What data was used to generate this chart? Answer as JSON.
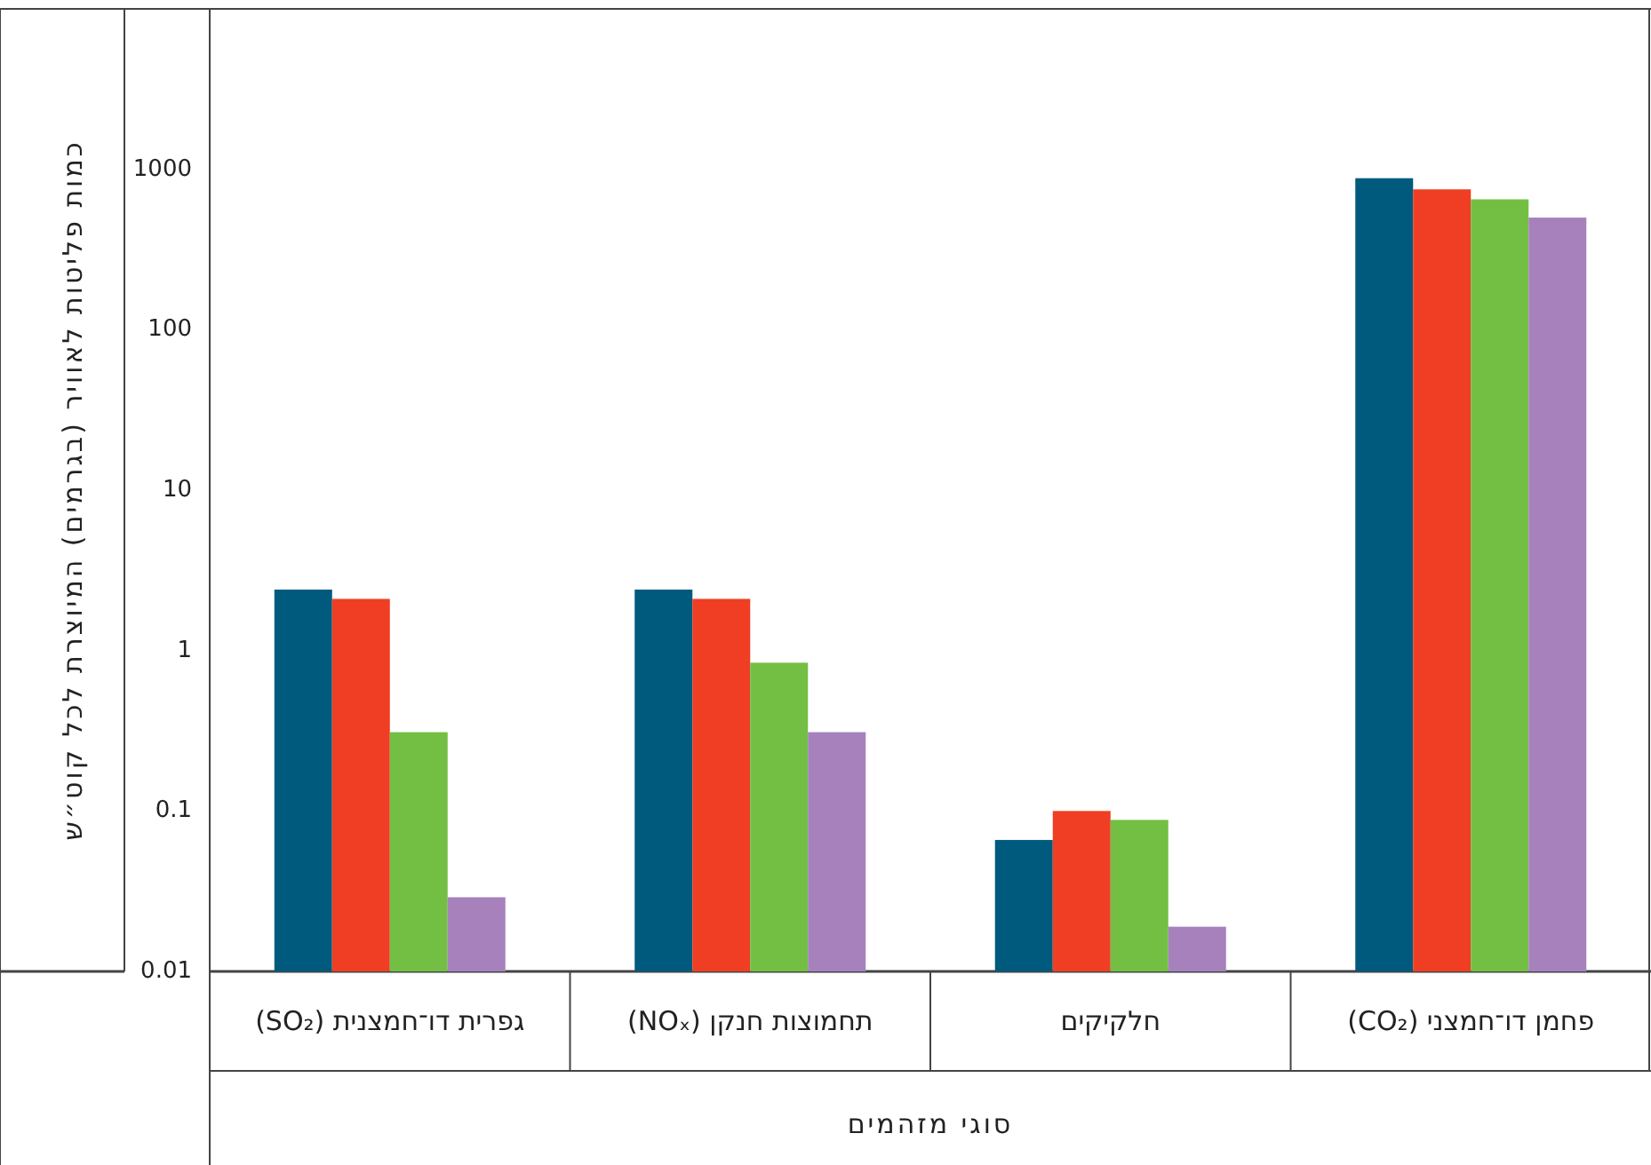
{
  "chart_data": {
    "type": "bar",
    "log": true,
    "xlabel": "סוגי מזהמים",
    "ylabel": "כמות פליטות לאוויר (בגרמים) המיוצרת לכל קוט״ש",
    "categories": [
      "גפרית דו־חמצנית (SO₂)",
      "תחמוצות חנקן (NOₓ)",
      "חלקיקים",
      "פחמן דו־חמצני (CO₂)"
    ],
    "ylim": [
      0.01,
      10000
    ],
    "yticks": [
      0.01,
      0.1,
      1,
      10,
      100,
      1000
    ],
    "series": [
      {
        "color": "#005a7e",
        "values": [
          2.4,
          2.4,
          0.066,
          880
        ]
      },
      {
        "color": "#ef3e23",
        "values": [
          2.1,
          2.1,
          0.1,
          750
        ]
      },
      {
        "color": "#72bf44",
        "values": [
          0.31,
          0.84,
          0.088,
          650
        ]
      },
      {
        "color": "#a681bc",
        "values": [
          0.029,
          0.31,
          0.019,
          500
        ]
      }
    ]
  }
}
